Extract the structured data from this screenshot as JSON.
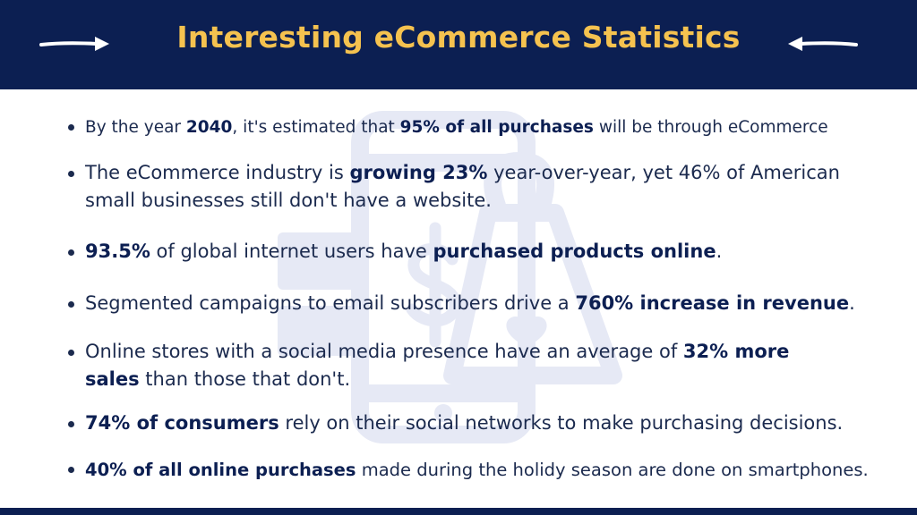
{
  "header": {
    "title": "Interesting eCommerce Statistics"
  },
  "colors": {
    "header_bg": "#0c1f52",
    "title": "#f5c24f",
    "body_text": "#1b2a4e",
    "watermark": "#e8ebf6"
  },
  "icons": {
    "left": "arrow-right-icon",
    "right": "arrow-left-icon",
    "background": "smartphone-shopping-bag-icon"
  },
  "stats": [
    {
      "parts": [
        {
          "t": "By the year ",
          "b": false
        },
        {
          "t": "2040",
          "b": true
        },
        {
          "t": ", it's estimated that ",
          "b": false
        },
        {
          "t": "95% of all purchases",
          "b": true
        },
        {
          "t": " will be through eCommerce",
          "b": false
        }
      ]
    },
    {
      "parts": [
        {
          "t": "The eCommerce industry is ",
          "b": false
        },
        {
          "t": "growing 23%",
          "b": true
        },
        {
          "t": " year-over-year, yet 46% of American",
          "b": false
        },
        {
          "t": "\n",
          "b": false
        },
        {
          "t": "small businesses still don't have a website.",
          "b": false
        }
      ]
    },
    {
      "parts": [
        {
          "t": "93.5%",
          "b": true
        },
        {
          "t": " of global internet users have ",
          "b": false
        },
        {
          "t": "purchased products online",
          "b": true
        },
        {
          "t": ".",
          "b": false
        }
      ]
    },
    {
      "parts": [
        {
          "t": "Segmented campaigns to email subscribers drive a ",
          "b": false
        },
        {
          "t": "760% increase in revenue",
          "b": true
        },
        {
          "t": ".",
          "b": false
        }
      ]
    },
    {
      "parts": [
        {
          "t": "Online stores with a social media presence have an average of ",
          "b": false
        },
        {
          "t": "32% more",
          "b": true
        },
        {
          "t": "\n",
          "b": false
        },
        {
          "t": "sales",
          "b": true
        },
        {
          "t": " than those that don't.",
          "b": false
        }
      ]
    },
    {
      "parts": [
        {
          "t": "74% of consumers",
          "b": true
        },
        {
          "t": " rely on their social networks to make purchasing decisions.",
          "b": false
        }
      ]
    },
    {
      "parts": [
        {
          "t": "40% of all online purchases",
          "b": true
        },
        {
          "t": " made during the holidy season are done on smartphones.",
          "b": false
        }
      ]
    }
  ]
}
